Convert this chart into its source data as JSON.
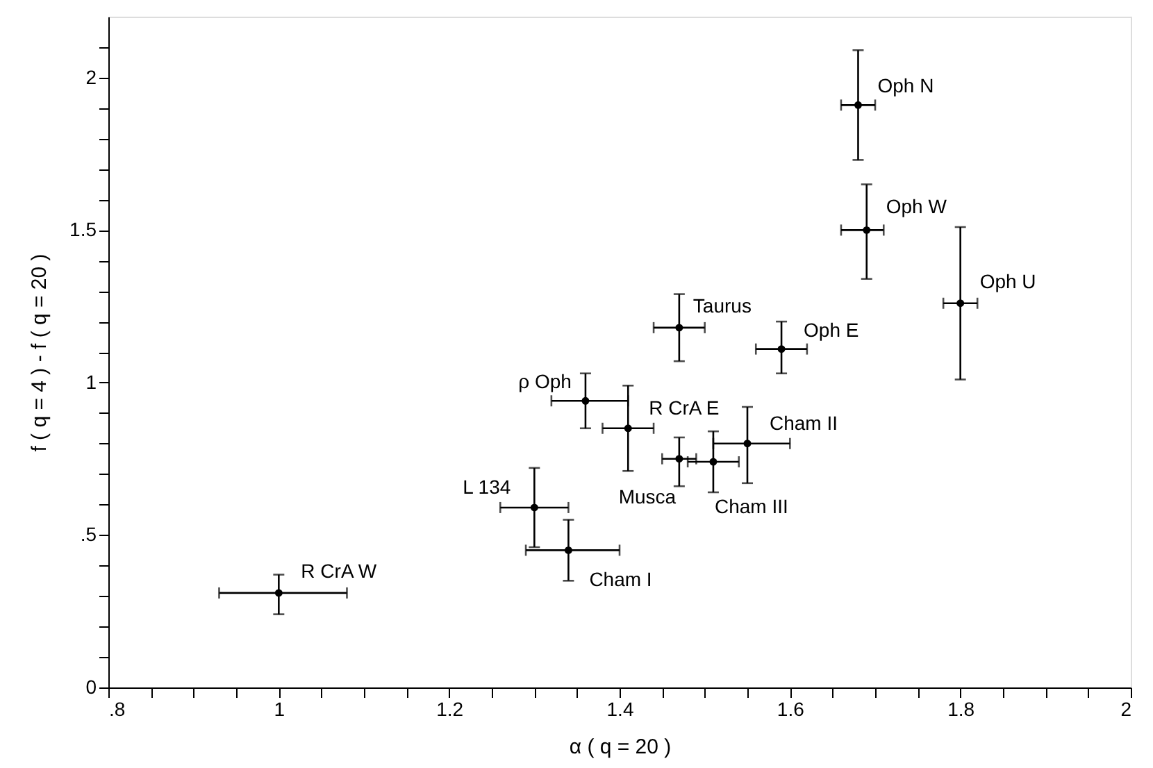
{
  "chart_data": {
    "type": "scatter",
    "xlabel": "α ( q = 20 )",
    "ylabel": "f ( q = 4 ) - f ( q = 20 )",
    "xlim": [
      0.8,
      2.0
    ],
    "ylim": [
      0,
      2.2
    ],
    "xticks": [
      {
        "value": 0.8,
        "label": ".8"
      },
      {
        "value": 0.85,
        "label": null
      },
      {
        "value": 0.9,
        "label": null
      },
      {
        "value": 0.95,
        "label": null
      },
      1,
      {
        "value": 1.05,
        "label": null
      },
      {
        "value": 1.1,
        "label": null
      },
      {
        "value": 1.15,
        "label": null
      },
      1.2,
      {
        "value": 1.25,
        "label": null
      },
      {
        "value": 1.3,
        "label": null
      },
      {
        "value": 1.35,
        "label": null
      },
      1.4,
      {
        "value": 1.45,
        "label": null
      },
      {
        "value": 1.5,
        "label": null
      },
      {
        "value": 1.55,
        "label": null
      },
      1.6,
      {
        "value": 1.65,
        "label": null
      },
      {
        "value": 1.7,
        "label": null
      },
      {
        "value": 1.75,
        "label": null
      },
      1.8,
      {
        "value": 1.85,
        "label": null
      },
      {
        "value": 1.9,
        "label": null
      },
      {
        "value": 1.95,
        "label": null
      },
      2
    ],
    "yticks": [
      0,
      {
        "value": 0.1,
        "label": null
      },
      {
        "value": 0.2,
        "label": null
      },
      {
        "value": 0.3,
        "label": null
      },
      {
        "value": 0.4,
        "label": null
      },
      {
        "value": 0.5,
        "label": ".5"
      },
      {
        "value": 0.6,
        "label": null
      },
      {
        "value": 0.7,
        "label": null
      },
      {
        "value": 0.8,
        "label": null
      },
      {
        "value": 0.9,
        "label": null
      },
      1,
      {
        "value": 1.1,
        "label": null
      },
      {
        "value": 1.2,
        "label": null
      },
      {
        "value": 1.3,
        "label": null
      },
      {
        "value": 1.4,
        "label": null
      },
      1.5,
      {
        "value": 1.6,
        "label": null
      },
      {
        "value": 1.7,
        "label": null
      },
      {
        "value": 1.8,
        "label": null
      },
      {
        "value": 1.9,
        "label": null
      },
      2,
      {
        "value": 2.1,
        "label": null
      }
    ],
    "grid": false,
    "marker": "circle",
    "series": [
      {
        "color": "#000000",
        "x": [
          1.68,
          1.69,
          1.8,
          1.47,
          1.59,
          1.36,
          1.41,
          1.47,
          1.51,
          1.55,
          1.34,
          1.3,
          1.0
        ],
        "values": [
          1.91,
          1.5,
          1.26,
          1.18,
          1.11,
          0.94,
          0.85,
          0.75,
          0.74,
          0.8,
          0.45,
          0.59,
          0.31
        ],
        "errors": [
          [
            1.73,
            2.09
          ],
          [
            1.34,
            1.65
          ],
          [
            1.01,
            1.51
          ],
          [
            1.07,
            1.29
          ],
          [
            1.03,
            1.2
          ],
          [
            0.85,
            1.03
          ],
          [
            0.71,
            0.99
          ],
          [
            0.66,
            0.82
          ],
          [
            0.64,
            0.84
          ],
          [
            0.67,
            0.92
          ],
          [
            0.35,
            0.55
          ],
          [
            0.46,
            0.72
          ],
          [
            0.24,
            0.37
          ]
        ],
        "xerrors": [
          [
            1.66,
            1.7
          ],
          [
            1.66,
            1.71
          ],
          [
            1.78,
            1.82
          ],
          [
            1.44,
            1.5
          ],
          [
            1.56,
            1.62
          ],
          [
            1.32,
            1.41
          ],
          [
            1.38,
            1.44
          ],
          [
            1.45,
            1.49
          ],
          [
            1.48,
            1.54
          ],
          [
            1.51,
            1.6
          ],
          [
            1.29,
            1.4
          ],
          [
            1.26,
            1.34
          ],
          [
            0.93,
            1.08
          ]
        ]
      }
    ],
    "annotations": [
      {
        "text": "Oph N",
        "x": 1.68,
        "y": 1.91
      },
      {
        "text": "Oph W",
        "x": 1.69,
        "y": 1.5
      },
      {
        "text": "Oph U",
        "x": 1.8,
        "y": 1.26
      },
      {
        "text": "Taurus",
        "x": 1.47,
        "y": 1.18
      },
      {
        "text": "Oph E",
        "x": 1.59,
        "y": 1.11
      },
      {
        "text": "ρ Oph",
        "x": 1.36,
        "y": 0.94
      },
      {
        "text": "R CrA E",
        "x": 1.41,
        "y": 0.85
      },
      {
        "text": "Musca",
        "x": 1.47,
        "y": 0.75
      },
      {
        "text": "Cham III",
        "x": 1.51,
        "y": 0.74
      },
      {
        "text": "Cham II",
        "x": 1.55,
        "y": 0.8
      },
      {
        "text": "Cham I",
        "x": 1.34,
        "y": 0.45
      },
      {
        "text": "L 134",
        "x": 1.3,
        "y": 0.59
      },
      {
        "text": "R CrA W",
        "x": 1.0,
        "y": 0.31
      }
    ]
  }
}
